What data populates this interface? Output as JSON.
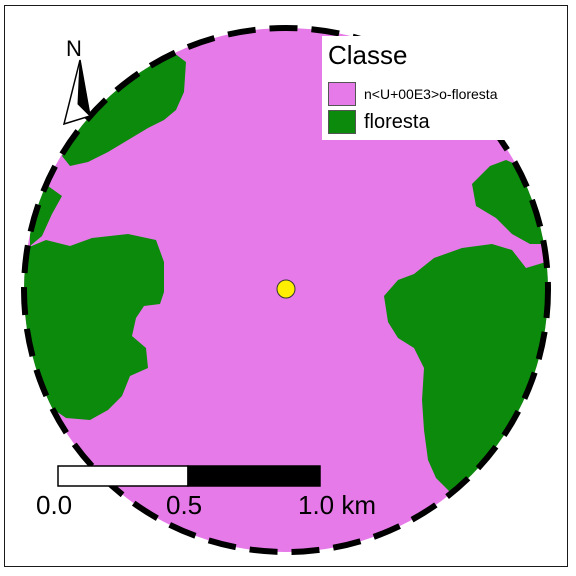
{
  "legend": {
    "title": "Classe",
    "items": [
      {
        "label": "n<U+00E3>o-floresta",
        "color": "#e77ae9"
      },
      {
        "label": "floresta",
        "color": "#0b8a0b"
      }
    ]
  },
  "scale_bar": {
    "labels": [
      "0.0",
      "0.5",
      "1.0 km"
    ],
    "segment_colors": [
      "#ffffff",
      "#000000"
    ]
  },
  "north_arrow": {
    "label": "N"
  },
  "study_point": {
    "color": "#ffee00"
  },
  "colors": {
    "non_forest": "#e77ae9",
    "forest": "#0b8a0b",
    "buffer_outline": "#000000",
    "background": "#ffffff"
  }
}
